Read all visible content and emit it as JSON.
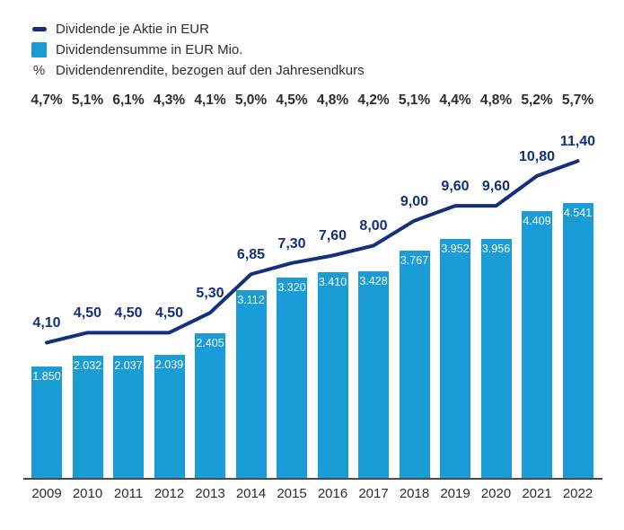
{
  "colors": {
    "bar": "#1A9DD6",
    "line": "#132F7D",
    "text_dark": "#2D2D2D",
    "axis": "#4A4A4A",
    "bar_label": "#FFFFFF"
  },
  "legend": {
    "items": [
      {
        "icon": "line-swatch-icon",
        "label": "Dividende je Aktie in EUR"
      },
      {
        "icon": "bar-swatch-icon",
        "label": "Dividendensumme in EUR Mio."
      },
      {
        "icon": "percent-symbol",
        "symbol": "%",
        "label": "Dividendenrendite, bezogen auf den Jahresendkurs"
      }
    ]
  },
  "chart_data": {
    "type": "bar+line",
    "categories": [
      "2009",
      "2010",
      "2011",
      "2012",
      "2013",
      "2014",
      "2015",
      "2016",
      "2017",
      "2018",
      "2019",
      "2020",
      "2021",
      "2022"
    ],
    "series": [
      {
        "name": "Dividende je Aktie in EUR",
        "type": "line",
        "values": [
          4.1,
          4.5,
          4.5,
          4.5,
          5.3,
          6.85,
          7.3,
          7.6,
          8.0,
          9.0,
          9.6,
          9.6,
          10.8,
          11.4
        ],
        "labels": [
          "4,10",
          "4,50",
          "4,50",
          "4,50",
          "5,30",
          "6,85",
          "7,30",
          "7,60",
          "8,00",
          "9,00",
          "9,60",
          "9,60",
          "10,80",
          "11,40"
        ]
      },
      {
        "name": "Dividendensumme in EUR Mio.",
        "type": "bar",
        "values": [
          1850,
          2032,
          2037,
          2039,
          2405,
          3112,
          3320,
          3410,
          3428,
          3767,
          3952,
          3956,
          4409,
          4541
        ],
        "labels": [
          "1.850",
          "2.032",
          "2.037",
          "2.039",
          "2.405",
          "3.112",
          "3.320",
          "3.410",
          "3.428",
          "3.767",
          "3.952",
          "3.956",
          "4.409",
          "4.541"
        ]
      },
      {
        "name": "Dividendenrendite, bezogen auf den Jahresendkurs",
        "type": "percent-row",
        "labels": [
          "4,7%",
          "5,1%",
          "6,1%",
          "4,3%",
          "4,1%",
          "5,0%",
          "4,5%",
          "4,8%",
          "4,2%",
          "5,1%",
          "4,4%",
          "4,8%",
          "5,2%",
          "5,7%"
        ]
      }
    ],
    "legend_position": "top-left",
    "grid": false,
    "bar_value_range": [
      0,
      4541
    ],
    "line_value_range": [
      4.1,
      11.4
    ]
  }
}
